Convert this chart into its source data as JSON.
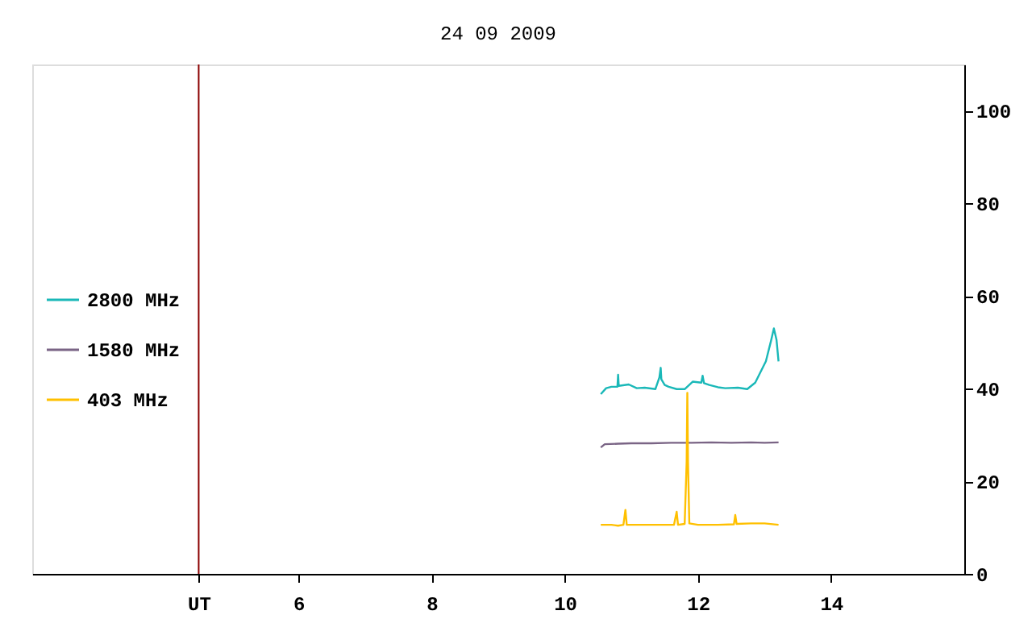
{
  "chart_data": {
    "type": "line",
    "title": "24 09 2009",
    "xlim": [
      2,
      16
    ],
    "xticks": [
      {
        "value": 4.5,
        "label": "UT"
      },
      6,
      8,
      10,
      12,
      14
    ],
    "ylim": [
      0,
      110
    ],
    "yticks": [
      0,
      20,
      40,
      60,
      80,
      100
    ],
    "grid": false,
    "legend": "left",
    "marker": "none",
    "line_style": "solid",
    "ref_lines": [
      {
        "axis": "x",
        "value": 4.5,
        "label": null,
        "color": "#8b0000"
      }
    ],
    "series": [
      {
        "name": "2800 MHz",
        "color": "#1ab8b8",
        "x": [
          10.54,
          10.62,
          10.7,
          10.79,
          10.8,
          10.81,
          10.96,
          11.08,
          11.2,
          11.36,
          11.42,
          11.44,
          11.45,
          11.5,
          11.56,
          11.68,
          11.8,
          11.92,
          12.05,
          12.07,
          12.09,
          12.17,
          12.3,
          12.41,
          12.6,
          12.74,
          12.86,
          12.94,
          13.02,
          13.1,
          13.14,
          13.18,
          13.21
        ],
        "values": [
          38.8,
          40.1,
          40.4,
          40.4,
          43.0,
          40.6,
          40.9,
          40.1,
          40.2,
          39.9,
          42.4,
          44.5,
          42.0,
          40.8,
          40.4,
          39.9,
          39.9,
          41.5,
          41.3,
          42.8,
          41.2,
          40.8,
          40.3,
          40.1,
          40.2,
          39.9,
          41.3,
          43.6,
          45.9,
          50.5,
          53.0,
          50.5,
          45.9
        ]
      },
      {
        "name": "1580 MHz",
        "color": "#7a6485",
        "x": [
          10.54,
          10.6,
          10.8,
          11.0,
          11.3,
          11.6,
          11.9,
          12.2,
          12.5,
          12.8,
          13.0,
          13.21
        ],
        "values": [
          27.3,
          28.0,
          28.1,
          28.2,
          28.2,
          28.3,
          28.3,
          28.4,
          28.3,
          28.4,
          28.3,
          28.4
        ]
      },
      {
        "name": "403 MHz",
        "color": "#ffc000",
        "x": [
          10.54,
          10.7,
          10.8,
          10.88,
          10.91,
          10.93,
          11.2,
          11.5,
          11.64,
          11.66,
          11.68,
          11.7,
          11.8,
          11.83,
          11.84,
          11.85,
          11.87,
          12.0,
          12.3,
          12.54,
          12.56,
          12.58,
          12.8,
          13.0,
          13.21
        ],
        "values": [
          10.6,
          10.6,
          10.4,
          10.6,
          13.8,
          10.6,
          10.6,
          10.6,
          10.6,
          12.0,
          13.4,
          10.6,
          10.8,
          24.2,
          39.1,
          24.2,
          10.9,
          10.6,
          10.6,
          10.7,
          12.7,
          10.8,
          10.9,
          10.9,
          10.6
        ]
      }
    ]
  }
}
